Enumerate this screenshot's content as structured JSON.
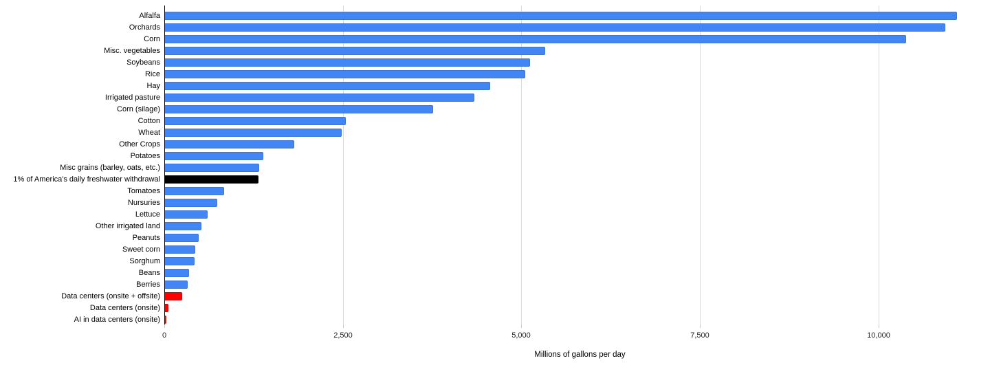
{
  "chart_data": {
    "type": "bar",
    "orientation": "horizontal",
    "title": "",
    "xlabel": "Millions of gallons per day",
    "ylabel": "",
    "xlim": [
      0,
      11640
    ],
    "grid": true,
    "legend_position": "none",
    "x_ticks": [
      {
        "value": 0,
        "label": "0"
      },
      {
        "value": 2500,
        "label": "2,500"
      },
      {
        "value": 5000,
        "label": "5,000"
      },
      {
        "value": 7500,
        "label": "7,500"
      },
      {
        "value": 10000,
        "label": "10,000"
      }
    ],
    "unit": "millions of gallons per day",
    "bars": [
      {
        "label": "Alfalfa",
        "value": 11100,
        "color": "blue"
      },
      {
        "label": "Orchards",
        "value": 10940,
        "color": "blue"
      },
      {
        "label": "Corn",
        "value": 10390,
        "color": "blue"
      },
      {
        "label": "Misc. vegetables",
        "value": 5330,
        "color": "blue"
      },
      {
        "label": "Soybeans",
        "value": 5120,
        "color": "blue"
      },
      {
        "label": "Rice",
        "value": 5050,
        "color": "blue"
      },
      {
        "label": "Hay",
        "value": 4560,
        "color": "blue"
      },
      {
        "label": "Irrigated pasture",
        "value": 4340,
        "color": "blue"
      },
      {
        "label": "Corn (silage)",
        "value": 3760,
        "color": "blue"
      },
      {
        "label": "Cotton",
        "value": 2540,
        "color": "blue"
      },
      {
        "label": "Wheat",
        "value": 2480,
        "color": "blue"
      },
      {
        "label": "Other Crops",
        "value": 1820,
        "color": "blue"
      },
      {
        "label": "Potatoes",
        "value": 1390,
        "color": "blue"
      },
      {
        "label": "Misc grains (barley, oats, etc.)",
        "value": 1330,
        "color": "blue"
      },
      {
        "label": "1% of America's daily freshwater withdrawal",
        "value": 1320,
        "color": "black"
      },
      {
        "label": "Tomatoes",
        "value": 840,
        "color": "blue"
      },
      {
        "label": "Nursuries",
        "value": 740,
        "color": "blue"
      },
      {
        "label": "Lettuce",
        "value": 610,
        "color": "blue"
      },
      {
        "label": "Other irrigated land",
        "value": 520,
        "color": "blue"
      },
      {
        "label": "Peanuts",
        "value": 480,
        "color": "blue"
      },
      {
        "label": "Sweet corn",
        "value": 430,
        "color": "blue"
      },
      {
        "label": "Sorghum",
        "value": 425,
        "color": "blue"
      },
      {
        "label": "Beans",
        "value": 350,
        "color": "blue"
      },
      {
        "label": "Berries",
        "value": 330,
        "color": "blue"
      },
      {
        "label": "Data centers (onsite + offsite)",
        "value": 250,
        "color": "red"
      },
      {
        "label": "Data centers (onsite)",
        "value": 60,
        "color": "red"
      },
      {
        "label": "AI in data centers (onsite)",
        "value": 25,
        "color": "red"
      }
    ],
    "palette": {
      "blue": "#4285F4",
      "black": "#000000",
      "red": "#FF0000"
    },
    "palette_borders": {
      "blue": "#3A76DC",
      "black": "#1a1a1a",
      "red": "#D40000"
    },
    "gridline_color": "#dadada",
    "axis_line_color": "#000000"
  }
}
